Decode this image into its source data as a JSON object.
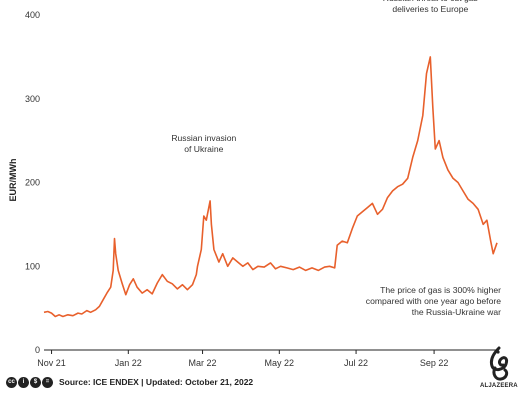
{
  "chart_data": {
    "type": "line",
    "ylabel": "EUR/MWh",
    "xlabel": "",
    "ylim": [
      0,
      400
    ],
    "yticks": [
      0,
      100,
      200,
      300,
      400
    ],
    "xlim": [
      "2021-10-26",
      "2022-10-21"
    ],
    "xticks": [
      {
        "label": "Nov 21",
        "date": "2021-11-01"
      },
      {
        "label": "Jan 22",
        "date": "2022-01-01"
      },
      {
        "label": "Mar 22",
        "date": "2022-03-01"
      },
      {
        "label": "May 22",
        "date": "2022-05-01"
      },
      {
        "label": "Jul 22",
        "date": "2022-07-01"
      },
      {
        "label": "Sep 22",
        "date": "2022-09-01"
      }
    ],
    "grid": false,
    "line_color": "#e8602c",
    "series": [
      {
        "points": [
          [
            "2021-10-26",
            45
          ],
          [
            "2021-10-29",
            46
          ],
          [
            "2021-11-01",
            44
          ],
          [
            "2021-11-04",
            40
          ],
          [
            "2021-11-07",
            42
          ],
          [
            "2021-11-10",
            40
          ],
          [
            "2021-11-14",
            42
          ],
          [
            "2021-11-18",
            41
          ],
          [
            "2021-11-22",
            44
          ],
          [
            "2021-11-25",
            43
          ],
          [
            "2021-11-29",
            47
          ],
          [
            "2021-12-02",
            45
          ],
          [
            "2021-12-06",
            48
          ],
          [
            "2021-12-09",
            52
          ],
          [
            "2021-12-12",
            60
          ],
          [
            "2021-12-15",
            68
          ],
          [
            "2021-12-18",
            75
          ],
          [
            "2021-12-20",
            95
          ],
          [
            "2021-12-21",
            133
          ],
          [
            "2021-12-22",
            115
          ],
          [
            "2021-12-24",
            95
          ],
          [
            "2021-12-27",
            80
          ],
          [
            "2021-12-30",
            66
          ],
          [
            "2022-01-02",
            78
          ],
          [
            "2022-01-05",
            85
          ],
          [
            "2022-01-08",
            75
          ],
          [
            "2022-01-12",
            68
          ],
          [
            "2022-01-16",
            72
          ],
          [
            "2022-01-20",
            67
          ],
          [
            "2022-01-24",
            80
          ],
          [
            "2022-01-28",
            90
          ],
          [
            "2022-02-01",
            82
          ],
          [
            "2022-02-05",
            79
          ],
          [
            "2022-02-09",
            73
          ],
          [
            "2022-02-13",
            78
          ],
          [
            "2022-02-17",
            72
          ],
          [
            "2022-02-21",
            78
          ],
          [
            "2022-02-24",
            90
          ],
          [
            "2022-02-25",
            100
          ],
          [
            "2022-02-28",
            120
          ],
          [
            "2022-03-02",
            160
          ],
          [
            "2022-03-04",
            155
          ],
          [
            "2022-03-07",
            178
          ],
          [
            "2022-03-08",
            150
          ],
          [
            "2022-03-10",
            120
          ],
          [
            "2022-03-14",
            105
          ],
          [
            "2022-03-17",
            115
          ],
          [
            "2022-03-21",
            100
          ],
          [
            "2022-03-25",
            110
          ],
          [
            "2022-03-29",
            105
          ],
          [
            "2022-04-02",
            100
          ],
          [
            "2022-04-06",
            104
          ],
          [
            "2022-04-10",
            96
          ],
          [
            "2022-04-14",
            100
          ],
          [
            "2022-04-19",
            99
          ],
          [
            "2022-04-24",
            104
          ],
          [
            "2022-04-28",
            97
          ],
          [
            "2022-05-02",
            100
          ],
          [
            "2022-05-07",
            98
          ],
          [
            "2022-05-12",
            96
          ],
          [
            "2022-05-17",
            99
          ],
          [
            "2022-05-22",
            95
          ],
          [
            "2022-05-27",
            98
          ],
          [
            "2022-06-01",
            95
          ],
          [
            "2022-06-06",
            99
          ],
          [
            "2022-06-10",
            100
          ],
          [
            "2022-06-14",
            98
          ],
          [
            "2022-06-16",
            125
          ],
          [
            "2022-06-20",
            130
          ],
          [
            "2022-06-24",
            128
          ],
          [
            "2022-06-28",
            145
          ],
          [
            "2022-07-02",
            160
          ],
          [
            "2022-07-06",
            165
          ],
          [
            "2022-07-10",
            170
          ],
          [
            "2022-07-14",
            175
          ],
          [
            "2022-07-18",
            162
          ],
          [
            "2022-07-22",
            168
          ],
          [
            "2022-07-26",
            182
          ],
          [
            "2022-07-30",
            190
          ],
          [
            "2022-08-03",
            195
          ],
          [
            "2022-08-07",
            198
          ],
          [
            "2022-08-11",
            205
          ],
          [
            "2022-08-15",
            230
          ],
          [
            "2022-08-19",
            250
          ],
          [
            "2022-08-23",
            280
          ],
          [
            "2022-08-26",
            330
          ],
          [
            "2022-08-29",
            350
          ],
          [
            "2022-08-31",
            290
          ],
          [
            "2022-09-02",
            240
          ],
          [
            "2022-09-05",
            250
          ],
          [
            "2022-09-08",
            230
          ],
          [
            "2022-09-12",
            215
          ],
          [
            "2022-09-16",
            205
          ],
          [
            "2022-09-20",
            200
          ],
          [
            "2022-09-24",
            190
          ],
          [
            "2022-09-28",
            180
          ],
          [
            "2022-10-02",
            175
          ],
          [
            "2022-10-06",
            168
          ],
          [
            "2022-10-10",
            150
          ],
          [
            "2022-10-13",
            155
          ],
          [
            "2022-10-16",
            130
          ],
          [
            "2022-10-18",
            115
          ],
          [
            "2022-10-21",
            128
          ]
        ]
      }
    ],
    "annotations": [
      {
        "id": "invasion",
        "lines": [
          "Russian invasion",
          "of Ukraine"
        ],
        "date": "2022-03-02",
        "value": 178
      },
      {
        "id": "threat",
        "lines": [
          "Russian threat to cut gas",
          "deliveries to Europe"
        ],
        "date": "2022-08-29",
        "value": 350
      },
      {
        "id": "note",
        "lines": [
          "The price of gas is 300% higher",
          "compared with one year ago before",
          "the Russia-Ukraine war"
        ],
        "date": "2022-10-21",
        "value": 128
      }
    ]
  },
  "footer": {
    "cc_icons": [
      "cc",
      "by",
      "nc",
      "nd"
    ],
    "text": "Source: ICE ENDEX  |  Updated: October 21, 2022"
  },
  "branding": {
    "logo_text": "ALJAZEERA"
  }
}
